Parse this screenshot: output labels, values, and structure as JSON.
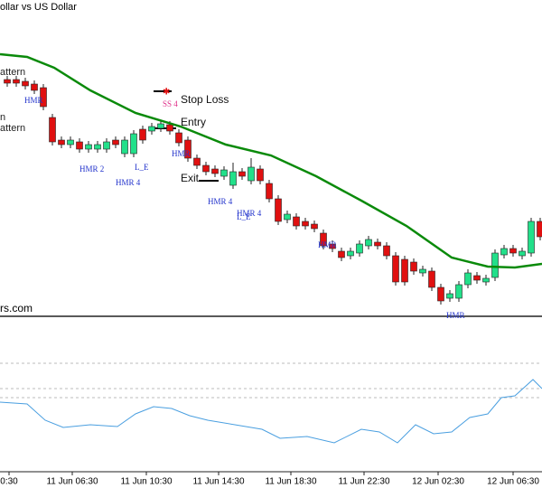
{
  "chart_data": {
    "type": "candlestick",
    "title": "ollar vs US Dollar",
    "watermark": "rs.com",
    "xlim": [
      -0.8,
      59.2
    ],
    "ylim": [
      0,
      350
    ],
    "up_color": "#22e08a",
    "down_color": "#e01010",
    "open": [
      262,
      262,
      260,
      257,
      253,
      220,
      195,
      190,
      193,
      185,
      185,
      185,
      195,
      180,
      180,
      207,
      205,
      208,
      212,
      203,
      195,
      175,
      167,
      163,
      155,
      145,
      160,
      150,
      163,
      147,
      130,
      107,
      110,
      105,
      102,
      92,
      80,
      72,
      67,
      70,
      78,
      82,
      78,
      67,
      63,
      60,
      48,
      50,
      32,
      20,
      20,
      35,
      45,
      38,
      43,
      68,
      75,
      67,
      70,
      105
    ],
    "high": [
      266,
      266,
      264,
      261,
      257,
      224,
      199,
      199,
      197,
      194,
      194,
      197,
      199,
      199,
      206,
      211,
      214,
      217,
      216,
      207,
      199,
      179,
      171,
      167,
      166,
      170,
      164,
      175,
      167,
      151,
      134,
      117,
      114,
      109,
      106,
      96,
      84,
      76,
      76,
      84,
      89,
      86,
      82,
      71,
      67,
      64,
      56,
      54,
      36,
      29,
      39,
      52,
      49,
      46,
      74,
      79,
      79,
      76,
      109,
      109
    ],
    "low": [
      254,
      254,
      251,
      246,
      228,
      189,
      186,
      186,
      181,
      181,
      181,
      181,
      186,
      176,
      176,
      191,
      201,
      204,
      201,
      188,
      171,
      163,
      156,
      154,
      151,
      141,
      151,
      146,
      146,
      126,
      101,
      103,
      96,
      96,
      93,
      74,
      71,
      61,
      63,
      66,
      74,
      74,
      63,
      34,
      34,
      46,
      44,
      28,
      13,
      16,
      16,
      31,
      36,
      34,
      39,
      64,
      66,
      63,
      66,
      84
    ],
    "close": [
      258,
      258,
      255,
      250,
      232,
      193,
      190,
      195,
      185,
      190,
      190,
      193,
      190,
      195,
      202,
      195,
      210,
      213,
      205,
      192,
      175,
      167,
      160,
      158,
      162,
      160,
      155,
      165,
      150,
      130,
      105,
      113,
      100,
      100,
      97,
      78,
      75,
      65,
      72,
      80,
      85,
      78,
      67,
      38,
      38,
      50,
      52,
      32,
      17,
      25,
      35,
      48,
      40,
      42,
      70,
      75,
      70,
      72,
      105,
      88
    ],
    "moving_average": {
      "color": "#0a8a0a",
      "x": [
        -0.8,
        2.2,
        5.2,
        9.2,
        14.2,
        19.2,
        24.2,
        29.2,
        34.2,
        39.2,
        44.2,
        49.2,
        53.2,
        56.2,
        59.2
      ],
      "values": [
        290,
        287,
        275,
        250,
        225,
        210,
        190,
        178,
        155,
        128,
        100,
        65,
        55,
        54,
        58
      ]
    },
    "labels": [
      "attern",
      "n",
      "attern",
      "HMR",
      "HMR 2",
      "HMR 4",
      "L_E",
      "SS 4",
      "HMR",
      "HMR 4",
      "HMR 4",
      "L_E",
      "HMR",
      "HMR",
      "Stop Loss",
      "Entry",
      "Exit"
    ],
    "indicator": {
      "color": "#4a9fe0",
      "ylim": [
        0,
        170
      ],
      "levels": [
        120,
        92,
        82
      ],
      "x": [
        -0.8,
        2.2,
        4.2,
        6.2,
        9.2,
        12.2,
        14.2,
        16.2,
        18.2,
        20.2,
        22.2,
        25.2,
        28.2,
        30.2,
        33.2,
        36.2,
        39.2,
        41.2,
        43.2,
        45.2,
        47.2,
        49.2,
        51.2,
        53.2,
        54.7,
        56.2,
        58.2,
        59.2
      ],
      "values": [
        77,
        75,
        57,
        49,
        52,
        50,
        64,
        72,
        70,
        62,
        57,
        52,
        47,
        37,
        39,
        32,
        47,
        44,
        32,
        52,
        42,
        44,
        60,
        64,
        82,
        84,
        102,
        92
      ]
    },
    "xticks": [
      {
        "value": 0.2,
        "label": "0:30"
      },
      {
        "value": 7.2,
        "label": "11 Jun 06:30"
      },
      {
        "value": 15.4,
        "label": "11 Jun 10:30"
      },
      {
        "value": 23.4,
        "label": "11 Jun 14:30"
      },
      {
        "value": 31.4,
        "label": "11 Jun 18:30"
      },
      {
        "value": 39.5,
        "label": "11 Jun 22:30"
      },
      {
        "value": 47.7,
        "label": "12 Jun 02:30"
      },
      {
        "value": 56,
        "label": "12 Jun 06:30"
      }
    ]
  }
}
